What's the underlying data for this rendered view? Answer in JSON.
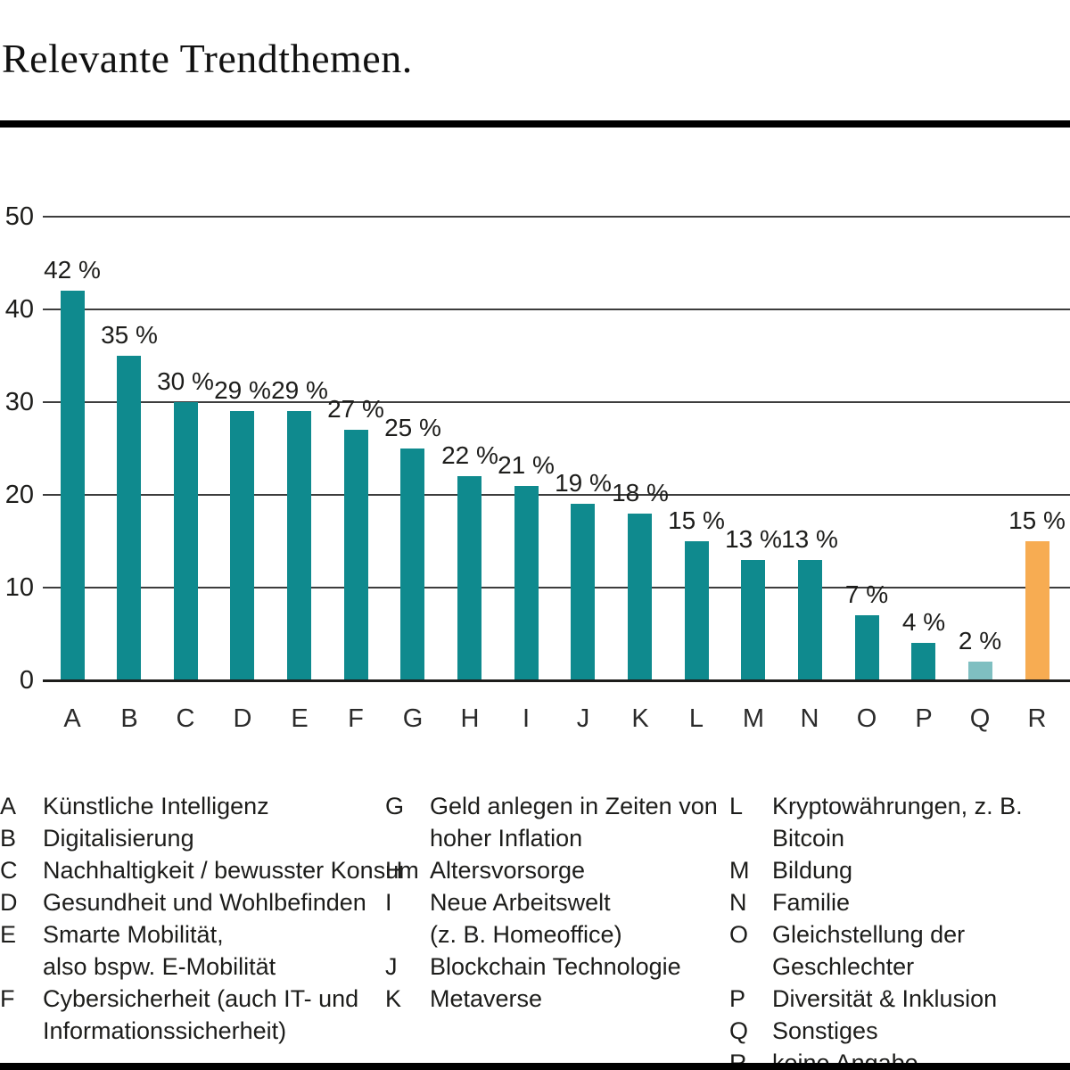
{
  "title": "Relevante Trendthemen.",
  "chart_data": {
    "type": "bar",
    "title": "Relevante Trendthemen.",
    "categories": [
      "A",
      "B",
      "C",
      "D",
      "E",
      "F",
      "G",
      "H",
      "I",
      "J",
      "K",
      "L",
      "M",
      "N",
      "O",
      "P",
      "Q",
      "R"
    ],
    "values": [
      42,
      35,
      30,
      29,
      29,
      27,
      25,
      22,
      21,
      19,
      18,
      15,
      13,
      13,
      7,
      4,
      2,
      15
    ],
    "value_labels": [
      "42 %",
      "35 %",
      "30 %",
      "29 %",
      "29 %",
      "27 %",
      "25 %",
      "22 %",
      "21 %",
      "19 %",
      "18 %",
      "15 %",
      "13 %",
      "13 %",
      "7 %",
      "4 %",
      "2 %",
      "15 %"
    ],
    "xlabel": "",
    "ylabel": "",
    "ylim": [
      0,
      50
    ],
    "yticks": [
      0,
      10,
      20,
      30,
      40,
      50
    ],
    "grid": "horizontal-lines",
    "legend_position": "below-chart",
    "bar_color_default": "#0f8a8e",
    "bar_color_overrides": {
      "Q": "#7fbfc1",
      "R": "#f7ac52"
    }
  },
  "legend": {
    "columns": [
      {
        "entries": [
          {
            "key": "A",
            "label": "Künstliche Intelligenz"
          },
          {
            "key": "B",
            "label": "Digitalisierung"
          },
          {
            "key": "C",
            "label": "Nachhaltigkeit / bewusster Konsum"
          },
          {
            "key": "D",
            "label": "Gesundheit und Wohlbefinden"
          },
          {
            "key": "E",
            "label": "Smarte Mobilität,\nalso bspw. E-Mobilität"
          },
          {
            "key": "F",
            "label": "Cybersicherheit (auch IT- und\nInformationssicherheit)"
          }
        ]
      },
      {
        "entries": [
          {
            "key": "G",
            "label": "Geld anlegen in Zeiten von\nhoher Inflation"
          },
          {
            "key": "H",
            "label": "Altersvorsorge"
          },
          {
            "key": "I",
            "label": "Neue Arbeitswelt\n(z. B. Homeoffice)"
          },
          {
            "key": "J",
            "label": "Blockchain Technologie"
          },
          {
            "key": "K",
            "label": "Metaverse"
          }
        ]
      },
      {
        "entries": [
          {
            "key": "L",
            "label": "Kryptowährungen, z. B. Bitcoin"
          },
          {
            "key": "M",
            "label": "Bildung"
          },
          {
            "key": "N",
            "label": "Familie"
          },
          {
            "key": "O",
            "label": "Gleichstellung der Geschlechter"
          },
          {
            "key": "P",
            "label": "Diversität & Inklusion"
          },
          {
            "key": "Q",
            "label": "Sonstiges"
          },
          {
            "key": "R",
            "label": "keine Angabe"
          }
        ]
      }
    ]
  },
  "colors": {
    "bar_teal": "#0f8a8e",
    "bar_light_teal": "#7fbfc1",
    "bar_orange": "#f7ac52",
    "gridline": "#3d3d3d",
    "axis_line": "#1d1d1b",
    "text": "#1d1d1b",
    "divider": "#000000"
  }
}
